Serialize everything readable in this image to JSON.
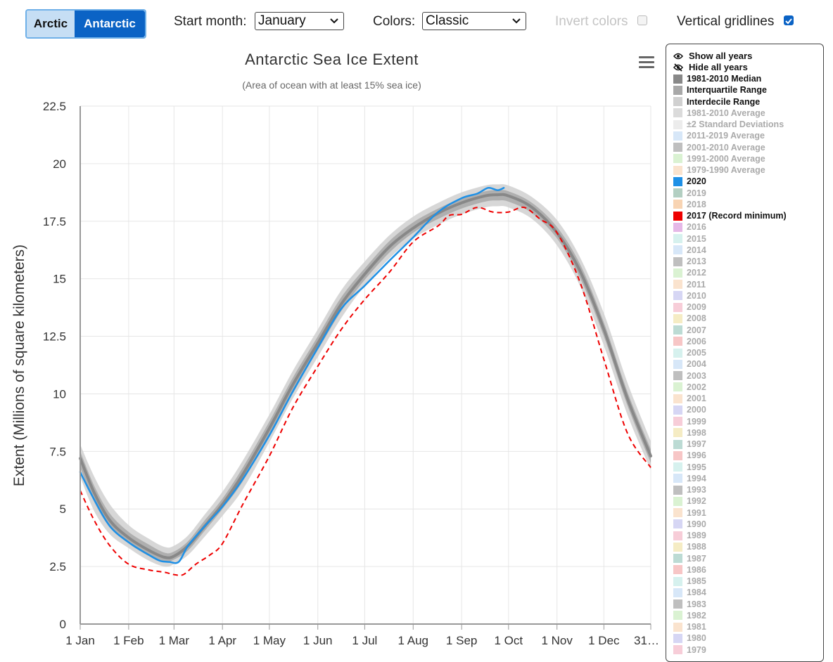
{
  "toolbar": {
    "arctic": "Arctic",
    "antarctic": "Antarctic",
    "start_label": "Start month:",
    "start_value": "January",
    "colors_label": "Colors:",
    "colors_value": "Classic",
    "invert_label": "Invert colors",
    "invert_checked": false,
    "gridlines_label": "Vertical gridlines",
    "gridlines_checked": true
  },
  "legend": {
    "show_all": "Show all years",
    "hide_all": "Hide all years",
    "items": [
      {
        "label": "1981-2010 Median",
        "color": "#888888",
        "active": true
      },
      {
        "label": "Interquartile Range",
        "color": "#a8a8a8",
        "active": true
      },
      {
        "label": "Interdecile Range",
        "color": "#d0d0d0",
        "active": true
      },
      {
        "label": "1981-2010 Average",
        "color": "#cfcfcf",
        "active": false
      },
      {
        "label": "±2 Standard Deviations",
        "color": "#e6e6e6",
        "active": false
      },
      {
        "label": "2011-2019 Average",
        "color": "#c9dff5",
        "active": false
      },
      {
        "label": "2001-2010 Average",
        "color": "#a9a9a9",
        "active": false
      },
      {
        "label": "1991-2000 Average",
        "color": "#cdeec3",
        "active": false
      },
      {
        "label": "1979-1990 Average",
        "color": "#f8d9bd",
        "active": false
      },
      {
        "label": "2020",
        "color": "#1e90e6",
        "active": true
      },
      {
        "label": "2019",
        "color": "#9abfae",
        "active": false
      },
      {
        "label": "2018",
        "color": "#f6c59a",
        "active": false
      },
      {
        "label": "2017 (Record minimum)",
        "color": "#ee0000",
        "active": true
      },
      {
        "label": "2016",
        "color": "#dca0df",
        "active": false
      },
      {
        "label": "2015",
        "color": "#c8ece8",
        "active": false
      },
      {
        "label": "2014",
        "color": "#c9dff5",
        "active": false
      },
      {
        "label": "2013",
        "color": "#a9a9a9",
        "active": false
      },
      {
        "label": "2012",
        "color": "#cdeec3",
        "active": false
      },
      {
        "label": "2011",
        "color": "#f8d9bd",
        "active": false
      },
      {
        "label": "2010",
        "color": "#c8c8f0",
        "active": false
      },
      {
        "label": "2009",
        "color": "#f4bccb",
        "active": false
      },
      {
        "label": "2008",
        "color": "#f2e6b0",
        "active": false
      },
      {
        "label": "2007",
        "color": "#a6cfc6",
        "active": false
      },
      {
        "label": "2006",
        "color": "#f4b3b3",
        "active": false
      },
      {
        "label": "2005",
        "color": "#c8ece8",
        "active": false
      },
      {
        "label": "2004",
        "color": "#c9dff5",
        "active": false
      },
      {
        "label": "2003",
        "color": "#a9a9a9",
        "active": false
      },
      {
        "label": "2002",
        "color": "#cdeec3",
        "active": false
      },
      {
        "label": "2001",
        "color": "#f8d9bd",
        "active": false
      },
      {
        "label": "2000",
        "color": "#c8c8f0",
        "active": false
      },
      {
        "label": "1999",
        "color": "#f4bccb",
        "active": false
      },
      {
        "label": "1998",
        "color": "#f2e6b0",
        "active": false
      },
      {
        "label": "1997",
        "color": "#a6cfc6",
        "active": false
      },
      {
        "label": "1996",
        "color": "#f4b3b3",
        "active": false
      },
      {
        "label": "1995",
        "color": "#c8ece8",
        "active": false
      },
      {
        "label": "1994",
        "color": "#c9dff5",
        "active": false
      },
      {
        "label": "1993",
        "color": "#a9a9a9",
        "active": false
      },
      {
        "label": "1992",
        "color": "#cdeec3",
        "active": false
      },
      {
        "label": "1991",
        "color": "#f8d9bd",
        "active": false
      },
      {
        "label": "1990",
        "color": "#c8c8f0",
        "active": false
      },
      {
        "label": "1989",
        "color": "#f4bccb",
        "active": false
      },
      {
        "label": "1988",
        "color": "#f2e6b0",
        "active": false
      },
      {
        "label": "1987",
        "color": "#a6cfc6",
        "active": false
      },
      {
        "label": "1986",
        "color": "#f4b3b3",
        "active": false
      },
      {
        "label": "1985",
        "color": "#c8ece8",
        "active": false
      },
      {
        "label": "1984",
        "color": "#c9dff5",
        "active": false
      },
      {
        "label": "1983",
        "color": "#a9a9a9",
        "active": false
      },
      {
        "label": "1982",
        "color": "#cdeec3",
        "active": false
      },
      {
        "label": "1981",
        "color": "#f8d9bd",
        "active": false
      },
      {
        "label": "1980",
        "color": "#c8c8f0",
        "active": false
      },
      {
        "label": "1979",
        "color": "#f4bccb",
        "active": false
      }
    ]
  },
  "chart_data": {
    "type": "line",
    "title": "Antarctic Sea Ice Extent",
    "subtitle": "(Area of ocean with at least 15% sea ice)",
    "ylabel": "Extent (Millions of square kilometers)",
    "xlabel": "",
    "ylim": [
      0,
      22.5
    ],
    "xlim": [
      1,
      366
    ],
    "yticks": [
      0,
      2.5,
      5,
      7.5,
      10,
      12.5,
      15,
      17.5,
      20,
      22.5
    ],
    "ytick_labels": [
      "0",
      "2.5",
      "5",
      "7.5",
      "10",
      "12.5",
      "15",
      "17.5",
      "20",
      "22.5"
    ],
    "xticks": [
      1,
      32,
      61,
      92,
      122,
      153,
      183,
      214,
      245,
      275,
      306,
      336,
      366
    ],
    "xtick_labels": [
      "1 Jan",
      "1 Feb",
      "1 Mar",
      "1 Apr",
      "1 May",
      "1 Jun",
      "1 Jul",
      "1 Aug",
      "1 Sep",
      "1 Oct",
      "1 Nov",
      "1 Dec",
      "31…"
    ],
    "vertical_gridlines": true,
    "legend_position": "right",
    "x_unit": "day of year",
    "series": [
      {
        "name": "1981-2010 Median",
        "kind": "median",
        "color": "#888888",
        "points": [
          [
            1,
            7.2
          ],
          [
            10,
            5.7
          ],
          [
            20,
            4.5
          ],
          [
            32,
            3.75
          ],
          [
            45,
            3.2
          ],
          [
            55,
            2.9
          ],
          [
            61,
            2.95
          ],
          [
            70,
            3.4
          ],
          [
            80,
            4.2
          ],
          [
            92,
            5.2
          ],
          [
            105,
            6.5
          ],
          [
            122,
            8.5
          ],
          [
            137,
            10.4
          ],
          [
            153,
            12.2
          ],
          [
            168,
            13.9
          ],
          [
            183,
            15.2
          ],
          [
            199,
            16.4
          ],
          [
            214,
            17.2
          ],
          [
            230,
            17.85
          ],
          [
            245,
            18.3
          ],
          [
            260,
            18.6
          ],
          [
            268,
            18.65
          ],
          [
            275,
            18.6
          ],
          [
            290,
            18.1
          ],
          [
            306,
            17.0
          ],
          [
            321,
            15.3
          ],
          [
            336,
            12.8
          ],
          [
            351,
            9.8
          ],
          [
            366,
            7.3
          ]
        ]
      },
      {
        "name": "Interquartile Range",
        "kind": "band",
        "color": "#a8a8a8",
        "lower": [
          [
            1,
            6.8
          ],
          [
            10,
            5.3
          ],
          [
            20,
            4.2
          ],
          [
            32,
            3.5
          ],
          [
            45,
            2.95
          ],
          [
            55,
            2.7
          ],
          [
            61,
            2.8
          ],
          [
            70,
            3.2
          ],
          [
            80,
            4.0
          ],
          [
            92,
            5.0
          ],
          [
            105,
            6.2
          ],
          [
            122,
            8.2
          ],
          [
            137,
            10.1
          ],
          [
            153,
            11.9
          ],
          [
            168,
            13.6
          ],
          [
            183,
            14.95
          ],
          [
            199,
            16.15
          ],
          [
            214,
            17.0
          ],
          [
            230,
            17.6
          ],
          [
            245,
            18.05
          ],
          [
            260,
            18.35
          ],
          [
            268,
            18.4
          ],
          [
            275,
            18.35
          ],
          [
            290,
            17.85
          ],
          [
            306,
            16.75
          ],
          [
            321,
            15.0
          ],
          [
            336,
            12.5
          ],
          [
            351,
            9.5
          ],
          [
            366,
            7.0
          ]
        ],
        "upper": [
          [
            1,
            7.5
          ],
          [
            10,
            6.0
          ],
          [
            20,
            4.8
          ],
          [
            32,
            4.0
          ],
          [
            45,
            3.45
          ],
          [
            55,
            3.1
          ],
          [
            61,
            3.15
          ],
          [
            70,
            3.6
          ],
          [
            80,
            4.45
          ],
          [
            92,
            5.45
          ],
          [
            105,
            6.8
          ],
          [
            122,
            8.8
          ],
          [
            137,
            10.7
          ],
          [
            153,
            12.5
          ],
          [
            168,
            14.2
          ],
          [
            183,
            15.45
          ],
          [
            199,
            16.65
          ],
          [
            214,
            17.45
          ],
          [
            230,
            18.05
          ],
          [
            245,
            18.5
          ],
          [
            260,
            18.8
          ],
          [
            268,
            18.85
          ],
          [
            275,
            18.8
          ],
          [
            290,
            18.3
          ],
          [
            306,
            17.25
          ],
          [
            321,
            15.6
          ],
          [
            336,
            13.1
          ],
          [
            351,
            10.1
          ],
          [
            366,
            7.6
          ]
        ]
      },
      {
        "name": "Interdecile Range",
        "kind": "band",
        "color": "#d0d0d0",
        "lower": [
          [
            1,
            6.4
          ],
          [
            10,
            4.9
          ],
          [
            20,
            3.9
          ],
          [
            32,
            3.3
          ],
          [
            45,
            2.75
          ],
          [
            55,
            2.5
          ],
          [
            61,
            2.6
          ],
          [
            70,
            3.0
          ],
          [
            80,
            3.75
          ],
          [
            92,
            4.7
          ],
          [
            105,
            5.85
          ],
          [
            122,
            7.9
          ],
          [
            137,
            9.8
          ],
          [
            153,
            11.6
          ],
          [
            168,
            13.3
          ],
          [
            183,
            14.7
          ],
          [
            199,
            15.9
          ],
          [
            214,
            16.75
          ],
          [
            230,
            17.35
          ],
          [
            245,
            17.8
          ],
          [
            260,
            18.1
          ],
          [
            268,
            18.15
          ],
          [
            275,
            18.1
          ],
          [
            290,
            17.6
          ],
          [
            306,
            16.45
          ],
          [
            321,
            14.65
          ],
          [
            336,
            12.1
          ],
          [
            351,
            9.1
          ],
          [
            366,
            6.7
          ]
        ],
        "upper": [
          [
            1,
            7.8
          ],
          [
            10,
            6.4
          ],
          [
            20,
            5.2
          ],
          [
            32,
            4.3
          ],
          [
            45,
            3.7
          ],
          [
            55,
            3.35
          ],
          [
            61,
            3.4
          ],
          [
            70,
            3.85
          ],
          [
            80,
            4.7
          ],
          [
            92,
            5.75
          ],
          [
            105,
            7.1
          ],
          [
            122,
            9.1
          ],
          [
            137,
            11.0
          ],
          [
            153,
            12.8
          ],
          [
            168,
            14.5
          ],
          [
            183,
            15.75
          ],
          [
            199,
            16.9
          ],
          [
            214,
            17.7
          ],
          [
            230,
            18.3
          ],
          [
            245,
            18.75
          ],
          [
            260,
            19.05
          ],
          [
            268,
            19.1
          ],
          [
            275,
            19.05
          ],
          [
            290,
            18.55
          ],
          [
            306,
            17.55
          ],
          [
            321,
            15.9
          ],
          [
            336,
            13.5
          ],
          [
            351,
            10.5
          ],
          [
            366,
            7.95
          ]
        ]
      },
      {
        "name": "2020",
        "kind": "line",
        "color": "#1e90e6",
        "points": [
          [
            1,
            6.6
          ],
          [
            10,
            5.4
          ],
          [
            20,
            4.25
          ],
          [
            32,
            3.55
          ],
          [
            45,
            3.0
          ],
          [
            52,
            2.75
          ],
          [
            58,
            2.7
          ],
          [
            64,
            2.7
          ],
          [
            70,
            3.4
          ],
          [
            80,
            4.2
          ],
          [
            92,
            5.1
          ],
          [
            105,
            6.3
          ],
          [
            122,
            8.2
          ],
          [
            137,
            10.1
          ],
          [
            153,
            12.0
          ],
          [
            168,
            13.7
          ],
          [
            183,
            14.7
          ],
          [
            199,
            15.8
          ],
          [
            214,
            16.8
          ],
          [
            230,
            17.9
          ],
          [
            245,
            18.5
          ],
          [
            255,
            18.7
          ],
          [
            262,
            18.95
          ],
          [
            268,
            18.85
          ],
          [
            272,
            18.95
          ]
        ]
      },
      {
        "name": "2017 (Record minimum)",
        "kind": "dashed",
        "color": "#ee0000",
        "points": [
          [
            1,
            5.8
          ],
          [
            10,
            4.5
          ],
          [
            20,
            3.4
          ],
          [
            32,
            2.6
          ],
          [
            45,
            2.35
          ],
          [
            55,
            2.25
          ],
          [
            61,
            2.15
          ],
          [
            67,
            2.15
          ],
          [
            75,
            2.6
          ],
          [
            84,
            3.0
          ],
          [
            92,
            3.5
          ],
          [
            105,
            5.2
          ],
          [
            122,
            7.3
          ],
          [
            137,
            9.4
          ],
          [
            153,
            11.2
          ],
          [
            168,
            12.8
          ],
          [
            183,
            14.1
          ],
          [
            199,
            15.3
          ],
          [
            214,
            16.6
          ],
          [
            230,
            17.3
          ],
          [
            237,
            17.75
          ],
          [
            245,
            17.8
          ],
          [
            255,
            18.1
          ],
          [
            265,
            17.9
          ],
          [
            275,
            17.9
          ],
          [
            285,
            18.1
          ],
          [
            295,
            17.6
          ],
          [
            306,
            17.0
          ],
          [
            321,
            14.8
          ],
          [
            336,
            11.5
          ],
          [
            351,
            8.3
          ],
          [
            366,
            6.8
          ]
        ]
      }
    ]
  }
}
